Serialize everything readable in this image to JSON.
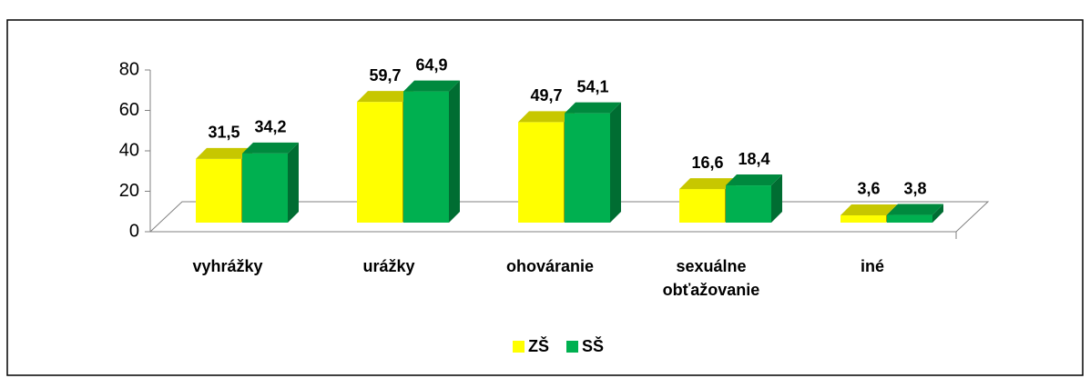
{
  "chart_data": {
    "type": "bar3d",
    "categories": [
      "vyhrážky",
      "urážky",
      "ohováranie",
      "sexuálne obťažovanie",
      "iné"
    ],
    "series": [
      {
        "name": "ZŠ",
        "color": "#ffff00",
        "values": [
          31.5,
          59.7,
          49.7,
          16.6,
          3.6
        ],
        "value_labels": [
          "31,5",
          "59,7",
          "49,7",
          "16,6",
          "3,6"
        ]
      },
      {
        "name": "SŠ",
        "color": "#00b050",
        "values": [
          34.2,
          64.9,
          54.1,
          18.4,
          3.8
        ],
        "value_labels": [
          "34,2",
          "64,9",
          "54,1",
          "18,4",
          "3,8"
        ]
      }
    ],
    "ylim": [
      0,
      80
    ],
    "yticks": [
      0,
      20,
      40,
      60,
      80
    ],
    "legend": "bottom"
  }
}
